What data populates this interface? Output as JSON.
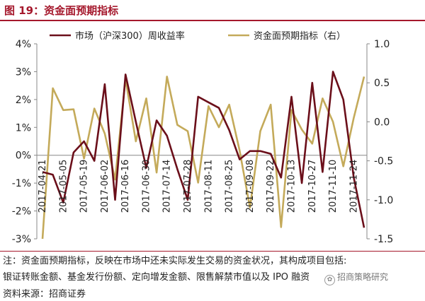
{
  "figure_title": "图 19：资金面预期指标",
  "note_line1": "注：资金面预期指标，反映在市场中还未实际发生交易的资金状况，其构成项目包括:",
  "note_line2": "银证转账金额、基金发行份额、定向增发金额、限售解禁市值以及 IPO 融资",
  "source": "资料来源：招商证券",
  "watermark": "招商策略研究",
  "watermark_icon": "wechat-icon",
  "colors": {
    "accent": "#a5182c",
    "market_series": "#6b0f1a",
    "liquidity_series": "#c4aa5a"
  },
  "chart_data": {
    "type": "line",
    "legend_position": "top",
    "grid": false,
    "x_tick_labels": [
      "2017-04-21",
      "2017-05-05",
      "2017-05-19",
      "2017-06-02",
      "2017-06-16",
      "2017-06-30",
      "2017-07-14",
      "2017-07-28",
      "2017-08-11",
      "2017-08-25",
      "2017-09-08",
      "2017-09-22",
      "2017-10-13",
      "2017-10-27",
      "2017-11-10",
      "2017-11-24"
    ],
    "left_axis": {
      "min": -3,
      "max": 4,
      "step": 1,
      "unit": "%",
      "tick_labels": [
        "-3%",
        "-2%",
        "-1%",
        "0%",
        "1%",
        "2%",
        "3%",
        "4%"
      ]
    },
    "right_axis": {
      "min": -1.5,
      "max": 1.0,
      "step": 0.5,
      "tick_labels": [
        "-1.5",
        "-1.0",
        "-0.5",
        "0.0",
        "0.5",
        "1.0"
      ]
    },
    "series": [
      {
        "name": "市场（沪深300）周收益率",
        "axis": "left",
        "values": [
          -0.6,
          -0.7,
          -1.7,
          0.1,
          0.5,
          -0.2,
          2.55,
          -1.6,
          2.9,
          1.2,
          -0.45,
          1.25,
          0.7,
          -0.5,
          -1.6,
          2.1,
          1.9,
          1.7,
          0.9,
          -0.15,
          0.15,
          0.15,
          0.05,
          -0.8,
          2.1,
          -1.0,
          2.6,
          -0.6,
          3.0,
          2.0,
          -0.8,
          -2.6
        ]
      },
      {
        "name": "资金面预期指标（右）",
        "axis": "right",
        "values": [
          -1.5,
          0.43,
          0.15,
          0.16,
          -0.47,
          0.17,
          -0.15,
          -0.74,
          0.55,
          -0.25,
          0.3,
          -0.65,
          0.58,
          -0.04,
          -0.12,
          -0.78,
          0.2,
          -0.07,
          0.22,
          -0.37,
          -1.1,
          -0.12,
          0.22,
          -1.35,
          0.15,
          -0.1,
          -0.28,
          0.3,
          0.0,
          -0.57,
          0.05,
          0.58
        ]
      }
    ]
  }
}
